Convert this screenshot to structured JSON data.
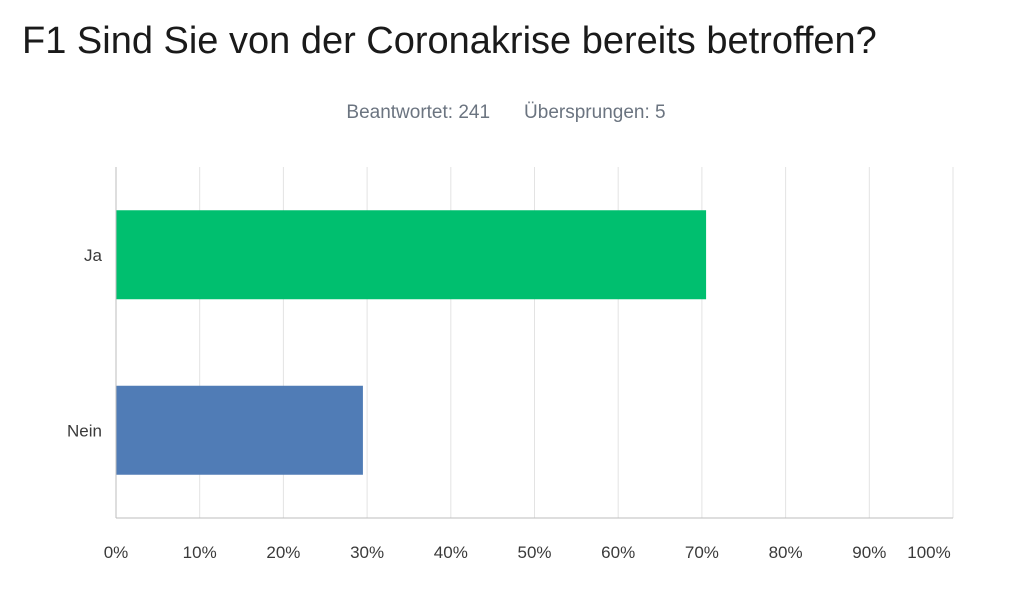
{
  "header": {
    "title": "F1 Sind Sie von der Coronakrise bereits betroffen?",
    "answered_label": "Beantwortet: 241",
    "skipped_label": "Übersprungen: 5"
  },
  "chart_data": {
    "type": "bar",
    "orientation": "horizontal",
    "categories": [
      "Ja",
      "Nein"
    ],
    "values": [
      70.5,
      29.5
    ],
    "colors": [
      "#00bf6f",
      "#507cb6"
    ],
    "xlim": [
      0,
      100
    ],
    "x_ticks": [
      "0%",
      "10%",
      "20%",
      "30%",
      "40%",
      "50%",
      "60%",
      "70%",
      "80%",
      "90%",
      "100%"
    ],
    "grid": "vertical",
    "title": "F1 Sind Sie von der Coronakrise bereits betroffen?",
    "xlabel": "",
    "ylabel": ""
  }
}
